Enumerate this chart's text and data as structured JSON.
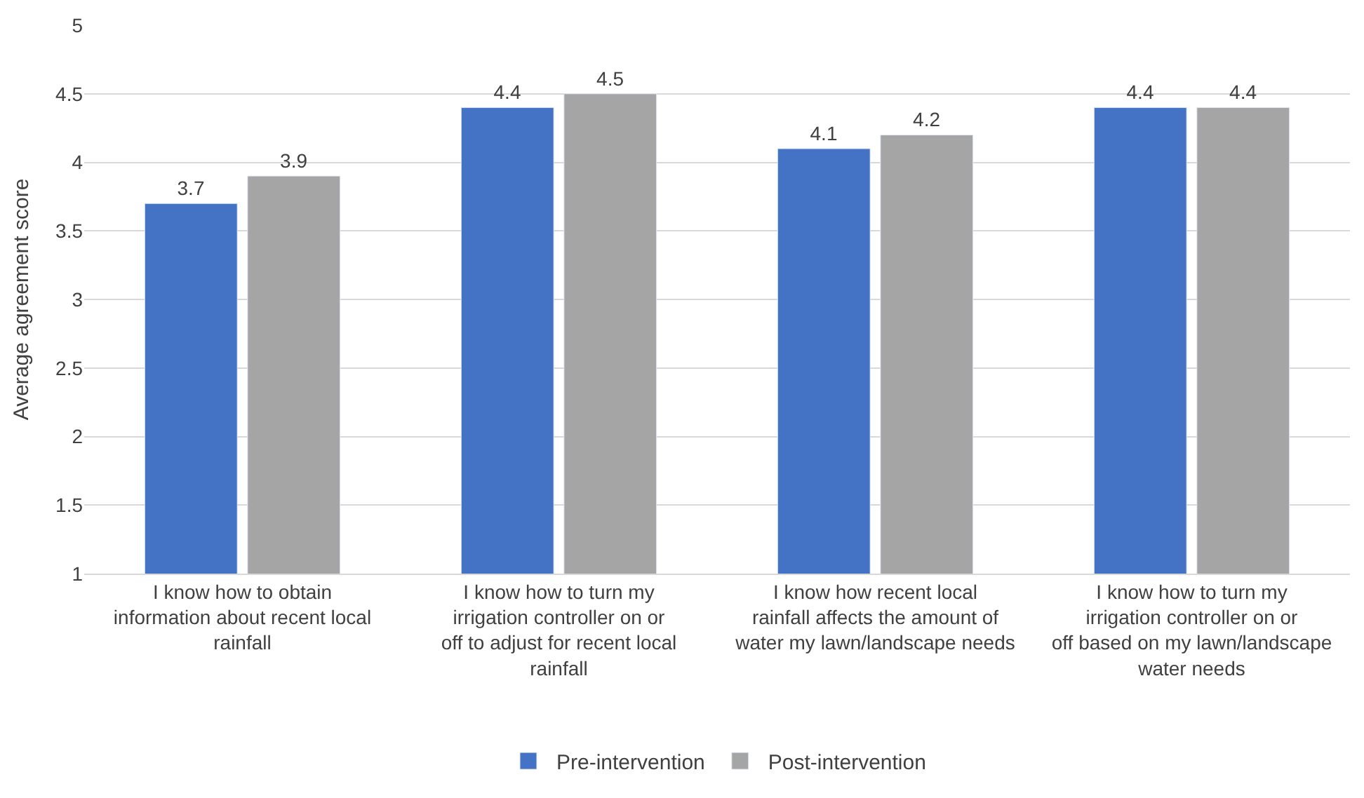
{
  "chart_data": {
    "type": "bar",
    "ylabel": "Average agreement score",
    "categories": [
      "I know how to obtain information about recent local rainfall",
      "I know how to turn my irrigation controller on or off to adjust for recent local rainfall",
      "I know how recent local rainfall affects the amount of water my lawn/landscape needs",
      "I know how to turn my irrigation controller on or off based on my lawn/landscape water needs"
    ],
    "series": [
      {
        "name": "Pre-intervention",
        "color": "#4472c4",
        "values": [
          3.7,
          4.4,
          4.1,
          4.4
        ]
      },
      {
        "name": "Post-intervention",
        "color": "#a5a5a5",
        "values": [
          3.9,
          4.5,
          4.2,
          4.4
        ]
      }
    ],
    "ylim": [
      1,
      5
    ],
    "yticks": [
      1,
      1.5,
      2,
      2.5,
      3,
      3.5,
      4,
      4.5,
      5
    ],
    "grid": "y",
    "legend": "bottom",
    "data_labels": true
  }
}
